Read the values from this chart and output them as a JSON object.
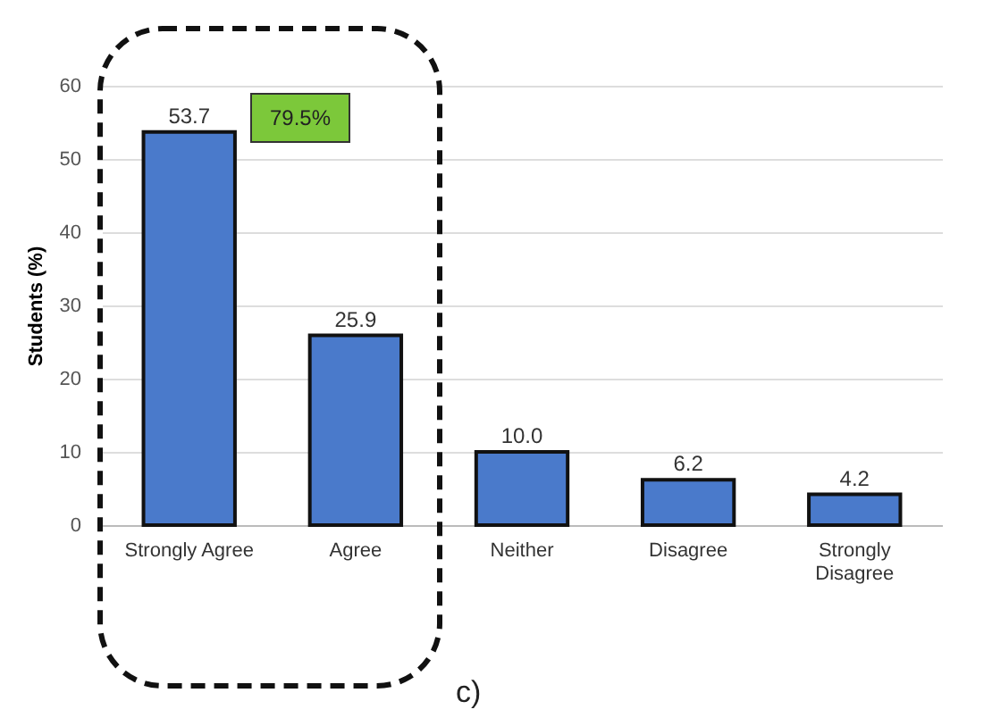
{
  "chart_data": {
    "type": "bar",
    "ylabel": "Students (%)",
    "categories": [
      "Strongly Agree",
      "Agree",
      "Neither",
      "Disagree",
      "Strongly Disagree"
    ],
    "values": [
      53.7,
      25.9,
      10.0,
      6.2,
      4.2
    ],
    "color": "#4a7acb",
    "ylim": [
      0,
      60
    ],
    "yticks": [
      0,
      10,
      20,
      30,
      40,
      50,
      60
    ],
    "grid": "y",
    "value_labels": [
      "53.7",
      "25.9",
      "10.0",
      "6.2",
      "4.2"
    ],
    "annotations": [
      "79.5%",
      "c)"
    ]
  }
}
